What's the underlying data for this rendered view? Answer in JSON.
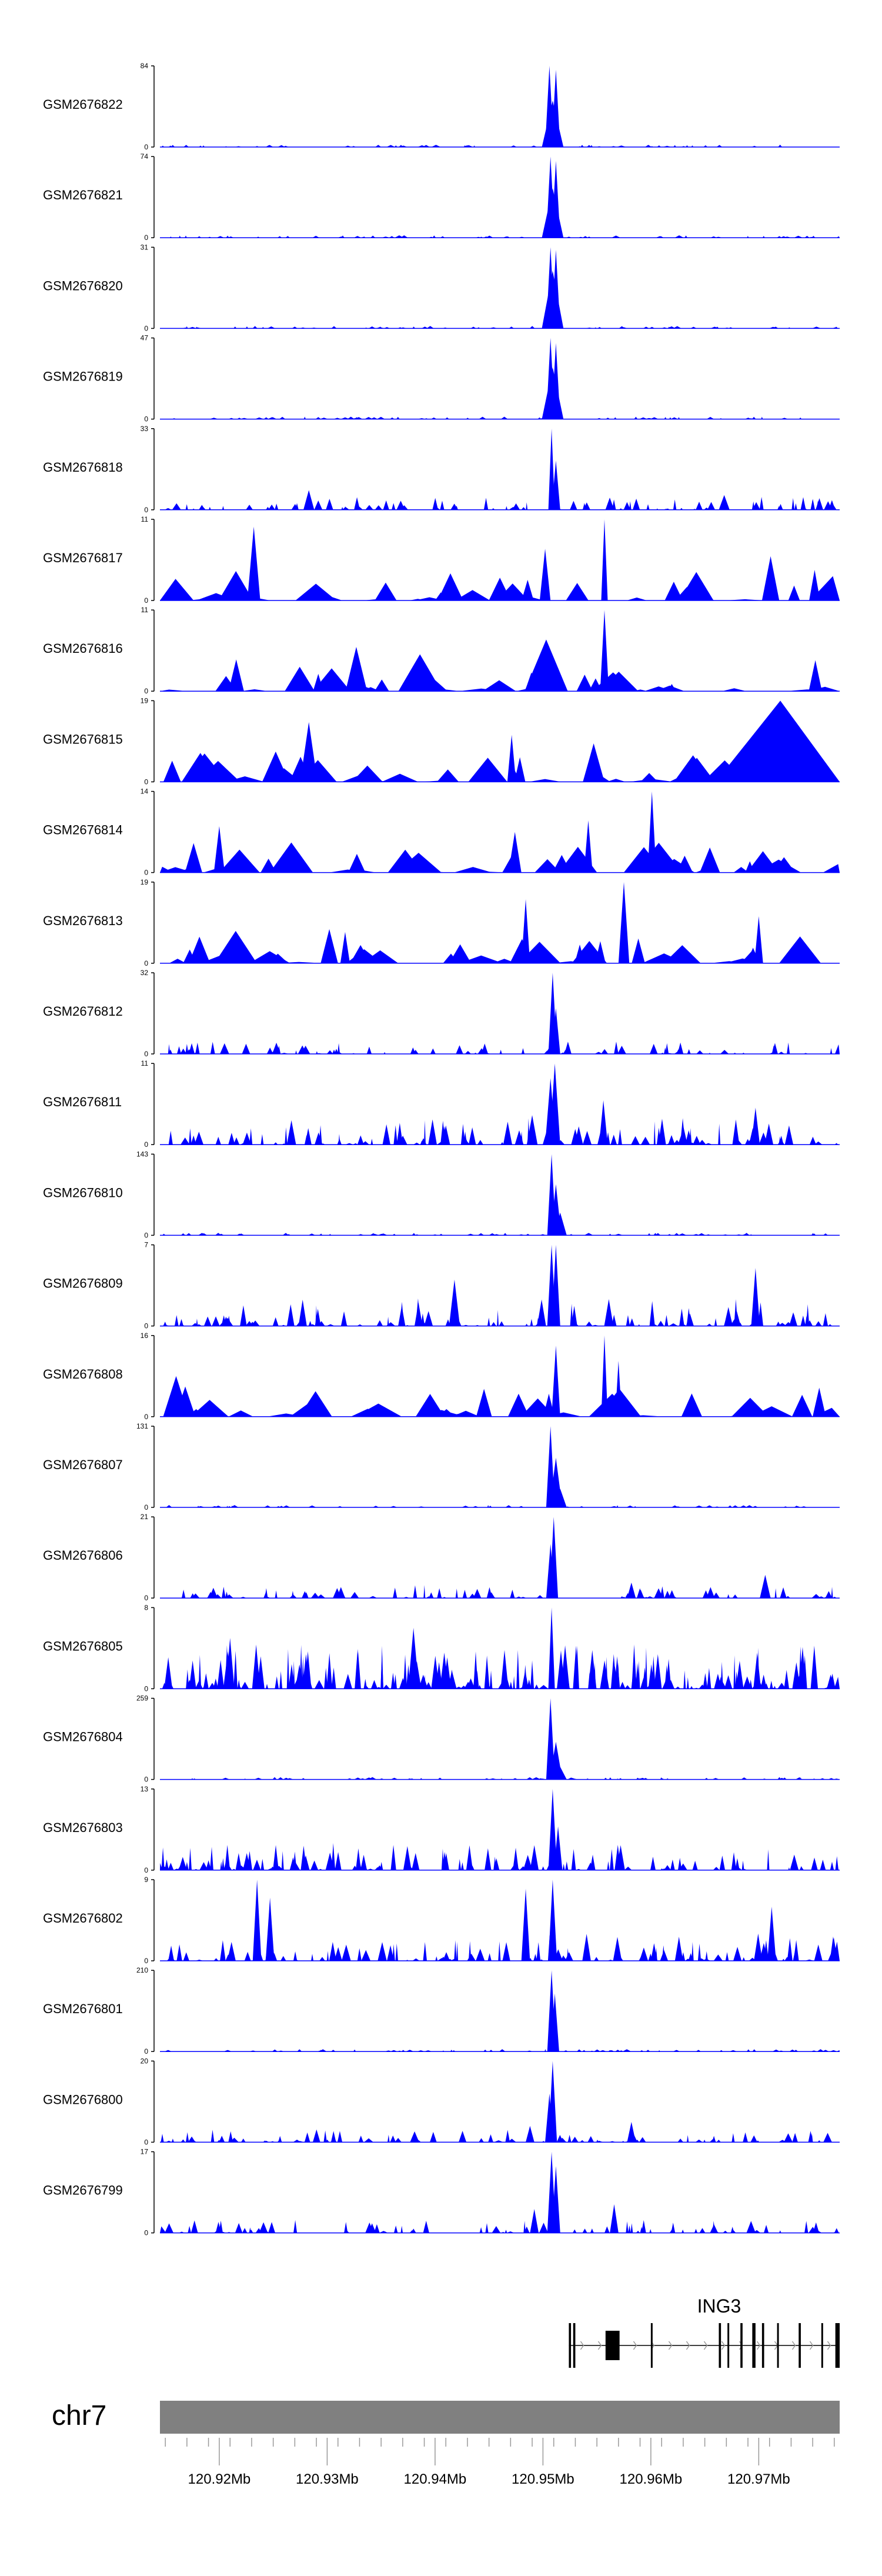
{
  "chart_data": {
    "type": "area",
    "title": "",
    "xlabel": "",
    "ylabel": "",
    "chromosome": "chr7",
    "xlim": [
      120.9145,
      120.9775
    ],
    "x_ticks": [
      "120.92Mb",
      "120.93Mb",
      "120.94Mb",
      "120.95Mb",
      "120.96Mb",
      "120.97Mb"
    ],
    "x_tick_values": [
      120.92,
      120.93,
      120.94,
      120.95,
      120.96,
      120.97
    ],
    "gene": {
      "name": "ING3",
      "start": 120.9524,
      "end": 120.9775,
      "strand": "+",
      "exons": [
        [
          120.9524,
          120.9526
        ],
        [
          120.9528,
          120.953
        ],
        [
          120.9558,
          120.9571
        ],
        [
          120.96,
          120.9601
        ],
        [
          120.9663,
          120.9665
        ],
        [
          120.9671,
          120.9672
        ],
        [
          120.9683,
          120.9685
        ],
        [
          120.9694,
          120.9697
        ],
        [
          120.9703,
          120.9705
        ],
        [
          120.9717,
          120.9718
        ],
        [
          120.9737,
          120.9739
        ],
        [
          120.9758,
          120.9759
        ],
        [
          120.9771,
          120.9775
        ]
      ]
    },
    "series": [
      {
        "name": "GSM2676822",
        "ymax": 84,
        "style": "peak",
        "peaks": [
          [
            120.9506,
            84,
            0.0004
          ],
          [
            120.9512,
            80,
            0.0004
          ],
          [
            120.9509,
            48,
            0.001
          ]
        ]
      },
      {
        "name": "GSM2676821",
        "ymax": 74,
        "style": "peak",
        "peaks": [
          [
            120.9507,
            74,
            0.0004
          ],
          [
            120.9512,
            70,
            0.0004
          ],
          [
            120.9509,
            45,
            0.001
          ]
        ]
      },
      {
        "name": "GSM2676820",
        "ymax": 31,
        "style": "peak",
        "peaks": [
          [
            120.9507,
            31,
            0.0004
          ],
          [
            120.9512,
            30,
            0.0004
          ],
          [
            120.9509,
            22,
            0.001
          ]
        ]
      },
      {
        "name": "GSM2676819",
        "ymax": 47,
        "style": "peak",
        "peaks": [
          [
            120.9507,
            47,
            0.0004
          ],
          [
            120.9512,
            44,
            0.0004
          ],
          [
            120.9509,
            30,
            0.001
          ]
        ]
      },
      {
        "name": "GSM2676818",
        "ymax": 33,
        "style": "medium",
        "peaks": [
          [
            120.9508,
            33,
            0.0003
          ],
          [
            120.9512,
            20,
            0.0004
          ],
          [
            120.9283,
            8,
            0.0005
          ],
          [
            120.9668,
            6,
            0.0005
          ]
        ]
      },
      {
        "name": "GSM2676817",
        "ymax": 11,
        "style": "sparse",
        "peaks": [
          [
            120.9557,
            11,
            0.0003
          ],
          [
            120.9232,
            10,
            0.0006
          ],
          [
            120.9502,
            7,
            0.0005
          ],
          [
            120.9711,
            6,
            0.0008
          ]
        ]
      },
      {
        "name": "GSM2676816",
        "ymax": 11,
        "style": "sparse",
        "peaks": [
          [
            120.9557,
            11,
            0.0004
          ],
          [
            120.9503,
            7,
            0.002
          ],
          [
            120.9386,
            5,
            0.002
          ],
          [
            120.9327,
            6,
            0.001
          ]
        ]
      },
      {
        "name": "GSM2676815",
        "ymax": 19,
        "style": "sparse",
        "peaks": [
          [
            120.972,
            19,
            0.006
          ],
          [
            120.9283,
            14,
            0.0008
          ],
          [
            120.9471,
            11,
            0.0004
          ],
          [
            120.9547,
            9,
            0.001
          ]
        ]
      },
      {
        "name": "GSM2676814",
        "ymax": 14,
        "style": "sparse",
        "peaks": [
          [
            120.9601,
            14,
            0.0004
          ],
          [
            120.9542,
            9,
            0.0004
          ],
          [
            120.92,
            8,
            0.0005
          ],
          [
            120.9474,
            7,
            0.0006
          ]
        ]
      },
      {
        "name": "GSM2676813",
        "ymax": 19,
        "style": "sparse",
        "peaks": [
          [
            120.9575,
            19,
            0.0005
          ],
          [
            120.9484,
            15,
            0.0004
          ],
          [
            120.97,
            11,
            0.0004
          ],
          [
            120.9302,
            8,
            0.0008
          ]
        ]
      },
      {
        "name": "GSM2676812",
        "ymax": 32,
        "style": "medium",
        "peaks": [
          [
            120.9509,
            32,
            0.0004
          ],
          [
            120.9512,
            18,
            0.0004
          ]
        ]
      },
      {
        "name": "GSM2676811",
        "ymax": 11,
        "style": "dense",
        "peaks": [
          [
            120.9511,
            11,
            0.0005
          ],
          [
            120.9507,
            9,
            0.0005
          ],
          [
            120.9556,
            6,
            0.0004
          ],
          [
            120.9697,
            5,
            0.0004
          ],
          [
            120.949,
            4,
            0.0005
          ]
        ]
      },
      {
        "name": "GSM2676810",
        "ymax": 143,
        "style": "peak",
        "peaks": [
          [
            120.9508,
            143,
            0.0004
          ],
          [
            120.9512,
            90,
            0.0005
          ],
          [
            120.9516,
            40,
            0.0006
          ]
        ]
      },
      {
        "name": "GSM2676809",
        "ymax": 7,
        "style": "dense",
        "peaks": [
          [
            120.9508,
            7,
            0.0004
          ],
          [
            120.9512,
            7,
            0.0004
          ],
          [
            120.9697,
            5,
            0.0004
          ],
          [
            120.9418,
            4,
            0.0005
          ]
        ]
      },
      {
        "name": "GSM2676808",
        "ymax": 16,
        "style": "sparse",
        "peaks": [
          [
            120.9557,
            16,
            0.0003
          ],
          [
            120.957,
            11,
            0.0003
          ],
          [
            120.9512,
            14,
            0.0004
          ],
          [
            120.916,
            8,
            0.0012
          ]
        ]
      },
      {
        "name": "GSM2676807",
        "ymax": 131,
        "style": "peak",
        "peaks": [
          [
            120.9507,
            131,
            0.0004
          ],
          [
            120.9512,
            80,
            0.0006
          ],
          [
            120.9516,
            30,
            0.0006
          ]
        ]
      },
      {
        "name": "GSM2676806",
        "ymax": 21,
        "style": "medium",
        "peaks": [
          [
            120.951,
            21,
            0.0004
          ],
          [
            120.9507,
            14,
            0.0004
          ],
          [
            120.9706,
            6,
            0.0005
          ],
          [
            120.9582,
            4,
            0.0004
          ]
        ]
      },
      {
        "name": "GSM2676805",
        "ymax": 8,
        "style": "verydense",
        "peaks": [
          [
            120.9508,
            8,
            0.0003
          ],
          [
            120.921,
            5,
            0.0004
          ],
          [
            120.938,
            6,
            0.0005
          ]
        ]
      },
      {
        "name": "GSM2676804",
        "ymax": 259,
        "style": "peak",
        "peaks": [
          [
            120.9507,
            259,
            0.0004
          ],
          [
            120.9512,
            120,
            0.0006
          ],
          [
            120.9516,
            40,
            0.0006
          ]
        ]
      },
      {
        "name": "GSM2676803",
        "ymax": 13,
        "style": "dense",
        "peaks": [
          [
            120.9509,
            13,
            0.0004
          ],
          [
            120.9514,
            7,
            0.0004
          ],
          [
            120.9572,
            4,
            0.0004
          ],
          [
            120.9492,
            4,
            0.0004
          ]
        ]
      },
      {
        "name": "GSM2676802",
        "ymax": 9,
        "style": "dense",
        "peaks": [
          [
            120.9509,
            9,
            0.0004
          ],
          [
            120.9235,
            9,
            0.0004
          ],
          [
            120.9484,
            8,
            0.0004
          ],
          [
            120.9247,
            7,
            0.0004
          ],
          [
            120.9712,
            6,
            0.0004
          ]
        ]
      },
      {
        "name": "GSM2676801",
        "ymax": 210,
        "style": "peak",
        "peaks": [
          [
            120.9508,
            210,
            0.0004
          ],
          [
            120.9511,
            150,
            0.0004
          ]
        ]
      },
      {
        "name": "GSM2676800",
        "ymax": 20,
        "style": "medium",
        "peaks": [
          [
            120.9509,
            20,
            0.0004
          ],
          [
            120.9506,
            12,
            0.0004
          ],
          [
            120.9582,
            5,
            0.0004
          ],
          [
            120.9488,
            4,
            0.0004
          ]
        ]
      },
      {
        "name": "GSM2676799",
        "ymax": 17,
        "style": "medium",
        "peaks": [
          [
            120.9508,
            17,
            0.0004
          ],
          [
            120.9512,
            14,
            0.0004
          ],
          [
            120.9566,
            6,
            0.0004
          ],
          [
            120.9492,
            5,
            0.0004
          ]
        ]
      }
    ]
  },
  "colors": {
    "signal": "#0000ff",
    "axis": "#000000",
    "ideogram": "#808080",
    "gene": "#000000"
  }
}
